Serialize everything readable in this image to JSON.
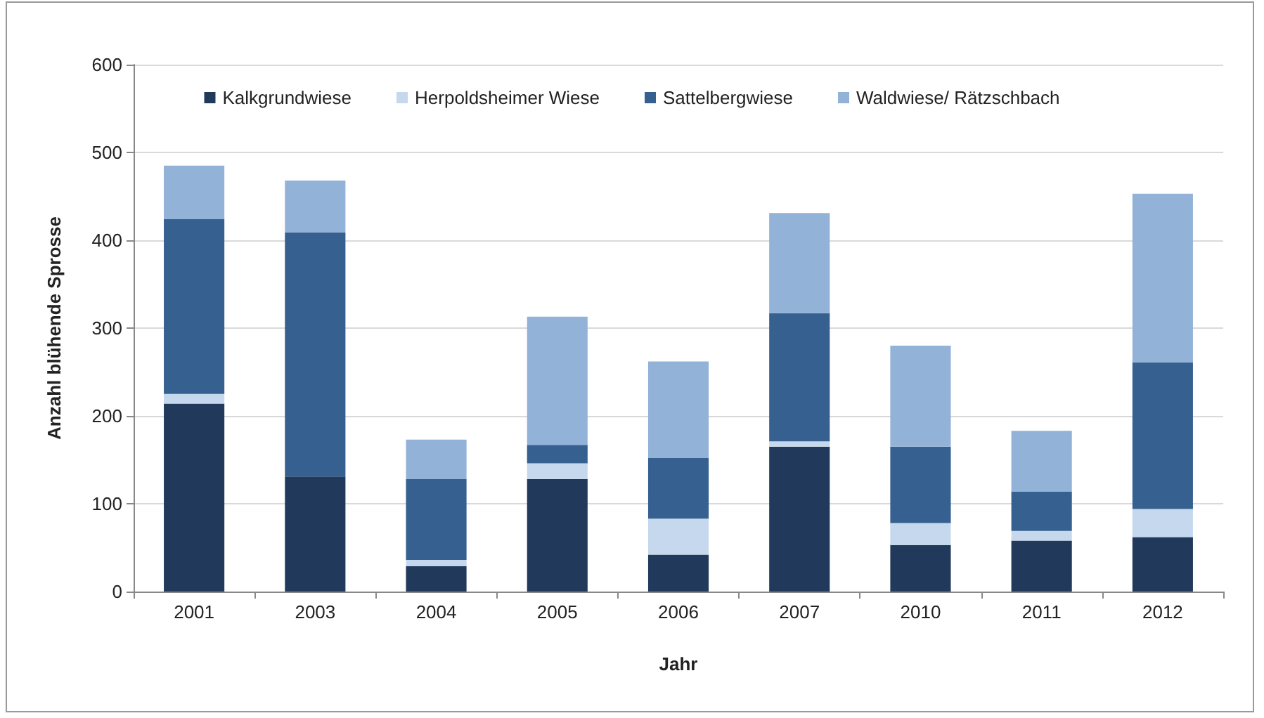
{
  "chart_data": {
    "type": "bar",
    "stacked": true,
    "xlabel": "Jahr",
    "ylabel": "Anzahl blühende Sprosse",
    "categories": [
      "2001",
      "2003",
      "2004",
      "2005",
      "2006",
      "2007",
      "2010",
      "2011",
      "2012"
    ],
    "series": [
      {
        "name": "Kalkgrundwiese",
        "color": "#213a5c",
        "values": [
          214,
          131,
          29,
          128,
          42,
          165,
          53,
          58,
          62
        ]
      },
      {
        "name": "Herpoldsheimer Wiese",
        "color": "#c5d8ee",
        "values": [
          11,
          0,
          7,
          18,
          41,
          6,
          25,
          11,
          32
        ]
      },
      {
        "name": "Sattelbergwiese",
        "color": "#35608f",
        "values": [
          199,
          278,
          92,
          21,
          69,
          146,
          87,
          45,
          167
        ]
      },
      {
        "name": "Waldwiese/ Rätzschbach",
        "color": "#93b2d8",
        "values": [
          61,
          59,
          45,
          146,
          110,
          114,
          115,
          69,
          192
        ]
      }
    ],
    "ylim": [
      0,
      600
    ],
    "yticks": [
      0,
      100,
      200,
      300,
      400,
      500,
      600
    ],
    "grid": "y",
    "legend": "top"
  }
}
